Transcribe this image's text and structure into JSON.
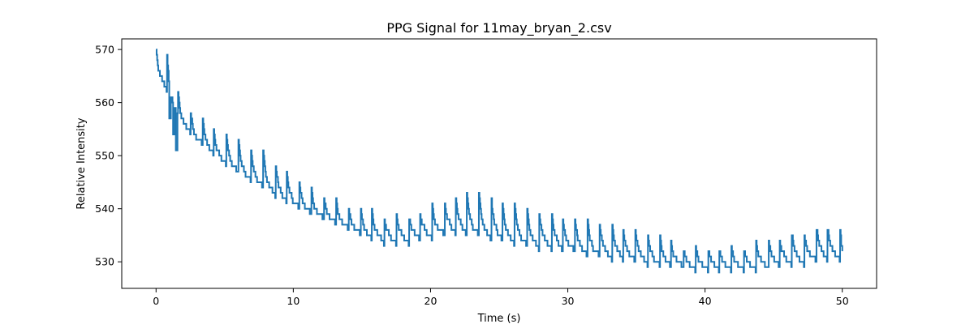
{
  "chart_data": {
    "type": "line",
    "title": "PPG Signal for 11may_bryan_2.csv",
    "xlabel": "Time (s)",
    "ylabel": "Relative Intensity",
    "xlim": [
      -2.5,
      52.5
    ],
    "ylim": [
      525,
      572
    ],
    "xticks": [
      0,
      10,
      20,
      30,
      40,
      50
    ],
    "yticks": [
      530,
      540,
      550,
      560,
      570
    ],
    "grid": false,
    "legend": "none",
    "colors": {
      "series": "#1f77b4",
      "axes": "#000000",
      "background": "#ffffff"
    },
    "series": [
      {
        "baseline": [
          [
            0,
            567
          ],
          [
            1,
            561
          ],
          [
            2,
            556
          ],
          [
            3,
            553
          ],
          [
            4,
            551
          ],
          [
            5,
            549
          ],
          [
            6,
            547
          ],
          [
            7,
            545.5
          ],
          [
            8,
            544
          ],
          [
            9,
            542.5
          ],
          [
            10,
            541
          ],
          [
            11,
            539.5
          ],
          [
            12,
            538.5
          ],
          [
            13,
            537.5
          ],
          [
            14,
            536.5
          ],
          [
            15,
            535.5
          ],
          [
            16,
            534.5
          ],
          [
            17,
            534
          ],
          [
            18,
            534
          ],
          [
            19,
            534.5
          ],
          [
            20,
            535
          ],
          [
            21,
            535.5
          ],
          [
            22,
            536
          ],
          [
            23,
            535.5
          ],
          [
            24,
            535
          ],
          [
            25,
            534.5
          ],
          [
            26,
            534
          ],
          [
            27,
            533.5
          ],
          [
            28,
            533
          ],
          [
            29,
            533
          ],
          [
            30,
            532.5
          ],
          [
            31,
            532
          ],
          [
            32,
            531.5
          ],
          [
            33,
            531
          ],
          [
            34,
            531
          ],
          [
            35,
            530.5
          ],
          [
            36,
            530
          ],
          [
            37,
            529.5
          ],
          [
            38,
            529.5
          ],
          [
            39,
            529
          ],
          [
            40,
            529
          ],
          [
            41,
            529
          ],
          [
            42,
            529
          ],
          [
            43,
            529
          ],
          [
            44,
            529
          ],
          [
            45,
            529.5
          ],
          [
            46,
            530
          ],
          [
            47,
            530
          ],
          [
            48,
            530.5
          ],
          [
            49,
            531
          ],
          [
            50,
            531
          ]
        ],
        "peaks": [
          [
            0,
            570
          ],
          [
            0.8,
            569
          ],
          [
            1.6,
            562
          ],
          [
            2.5,
            559
          ],
          [
            3.4,
            557
          ],
          [
            4.2,
            555
          ],
          [
            5.1,
            555
          ],
          [
            6.0,
            553
          ],
          [
            6.9,
            552
          ],
          [
            7.8,
            551
          ],
          [
            8.7,
            549
          ],
          [
            9.5,
            548
          ],
          [
            10.4,
            546
          ],
          [
            11.3,
            544
          ],
          [
            12.2,
            543
          ],
          [
            13.1,
            542
          ],
          [
            14.0,
            541
          ],
          [
            14.9,
            540
          ],
          [
            15.7,
            540
          ],
          [
            16.6,
            539
          ],
          [
            17.5,
            539
          ],
          [
            18.4,
            539
          ],
          [
            19.2,
            540
          ],
          [
            20.1,
            541
          ],
          [
            21.0,
            542
          ],
          [
            21.8,
            543
          ],
          [
            22.6,
            545
          ],
          [
            23.5,
            544
          ],
          [
            24.4,
            543
          ],
          [
            25.2,
            542
          ],
          [
            26.1,
            542
          ],
          [
            27.0,
            541
          ],
          [
            27.9,
            540
          ],
          [
            28.8,
            540
          ],
          [
            29.6,
            539
          ],
          [
            30.5,
            539
          ],
          [
            31.4,
            539
          ],
          [
            32.3,
            538
          ],
          [
            33.2,
            538
          ],
          [
            34.0,
            537
          ],
          [
            34.9,
            537
          ],
          [
            35.8,
            536
          ],
          [
            36.7,
            535
          ],
          [
            37.5,
            534
          ],
          [
            38.4,
            533
          ],
          [
            39.3,
            533
          ],
          [
            40.2,
            533
          ],
          [
            41.0,
            533
          ],
          [
            41.9,
            533
          ],
          [
            42.8,
            533
          ],
          [
            43.7,
            534
          ],
          [
            44.6,
            535
          ],
          [
            45.4,
            535
          ],
          [
            46.3,
            536
          ],
          [
            47.2,
            536
          ],
          [
            48.1,
            537
          ],
          [
            48.9,
            537
          ],
          [
            49.8,
            537
          ]
        ],
        "dips": [
          [
            1.0,
            557
          ],
          [
            1.3,
            554
          ],
          [
            1.5,
            551
          ]
        ],
        "end": [
          50,
          532
        ]
      }
    ]
  }
}
